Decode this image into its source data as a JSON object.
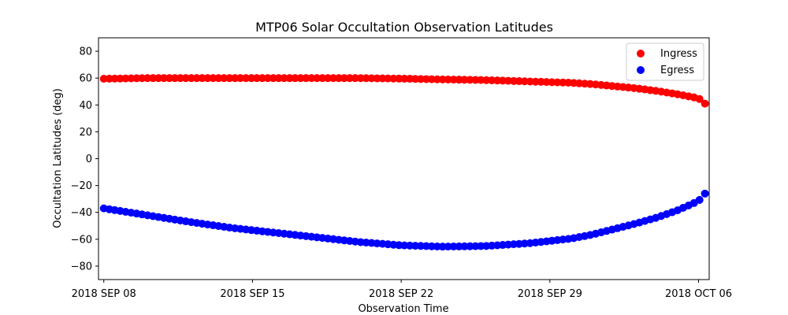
{
  "chart_data": {
    "type": "scatter",
    "title": "MTP06 Solar Occultation Observation Latitudes",
    "xlabel": "Observation Time",
    "ylabel": "Occultation Latitudes (deg)",
    "xlim_days": [
      -0.25,
      28.5
    ],
    "ylim": [
      -90,
      90
    ],
    "x_ticks": [
      {
        "day": 0,
        "label": "2018 SEP 08"
      },
      {
        "day": 7,
        "label": "2018 SEP 15"
      },
      {
        "day": 14,
        "label": "2018 SEP 22"
      },
      {
        "day": 21,
        "label": "2018 SEP 29"
      },
      {
        "day": 28,
        "label": "2018 OCT 06"
      }
    ],
    "y_ticks": [
      80,
      60,
      40,
      20,
      0,
      -20,
      -40,
      -60,
      -80
    ],
    "legend_position": "top-right",
    "series": [
      {
        "name": "Ingress",
        "color": "#ff0000",
        "x_days": [
          0,
          2,
          4,
          6,
          8,
          10,
          12,
          14,
          16,
          18,
          20,
          22,
          23,
          24,
          25,
          26,
          27,
          28,
          28.3
        ],
        "values": [
          59.5,
          60,
          60,
          60,
          60,
          60,
          60,
          59.6,
          59,
          58.5,
          57.5,
          56.5,
          55.5,
          54,
          52.5,
          50.5,
          48,
          45,
          41
        ]
      },
      {
        "name": "Egress",
        "color": "#0000ff",
        "x_days": [
          0,
          2,
          4,
          6,
          8,
          10,
          12,
          14,
          16,
          18,
          20,
          22,
          23,
          24,
          25,
          26,
          27,
          28,
          28.3
        ],
        "values": [
          -37,
          -42,
          -47,
          -51.5,
          -55,
          -58.5,
          -62,
          -64.5,
          -65.5,
          -65,
          -63,
          -59.5,
          -56.5,
          -52.5,
          -48.5,
          -44,
          -38.5,
          -31.5,
          -26
        ]
      }
    ]
  }
}
